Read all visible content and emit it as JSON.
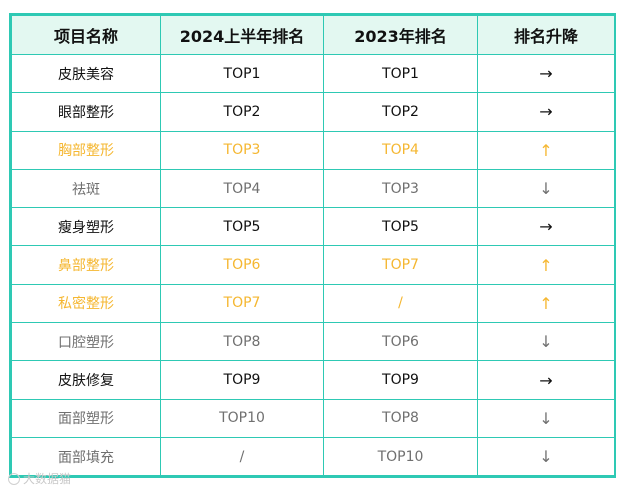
{
  "colors": {
    "border": "#2ec9b4",
    "header_bg": "#e3f8f1",
    "black_text": "#111111",
    "orange_text": "#f5b731",
    "gray_text": "#707070"
  },
  "headers": [
    "项目名称",
    "2024上半年排名",
    "2023年排名",
    "排名升降"
  ],
  "rows": [
    {
      "style": "black",
      "cells": [
        "皮肤美容",
        "TOP1",
        "TOP1",
        "→"
      ]
    },
    {
      "style": "black",
      "cells": [
        "眼部整形",
        "TOP2",
        "TOP2",
        "→"
      ]
    },
    {
      "style": "orange",
      "cells": [
        "胸部整形",
        "TOP3",
        "TOP4",
        "↑"
      ]
    },
    {
      "style": "gray",
      "cells": [
        "祛斑",
        "TOP4",
        "TOP3",
        "↓"
      ]
    },
    {
      "style": "black",
      "cells": [
        "瘦身塑形",
        "TOP5",
        "TOP5",
        "→"
      ]
    },
    {
      "style": "orange",
      "cells": [
        "鼻部整形",
        "TOP6",
        "TOP7",
        "↑"
      ]
    },
    {
      "style": "orange",
      "cells": [
        "私密整形",
        "TOP7",
        "/",
        "↑"
      ]
    },
    {
      "style": "gray",
      "cells": [
        "口腔塑形",
        "TOP8",
        "TOP6",
        "↓"
      ]
    },
    {
      "style": "black",
      "cells": [
        "皮肤修复",
        "TOP9",
        "TOP9",
        "→"
      ]
    },
    {
      "style": "gray",
      "cells": [
        "面部塑形",
        "TOP10",
        "TOP8",
        "↓"
      ]
    },
    {
      "style": "gray",
      "cells": [
        "面部填充",
        "/",
        "TOP10",
        "↓"
      ]
    }
  ],
  "watermark": {
    "text": "大数据猫",
    "icon": "watermark-logo-icon"
  }
}
